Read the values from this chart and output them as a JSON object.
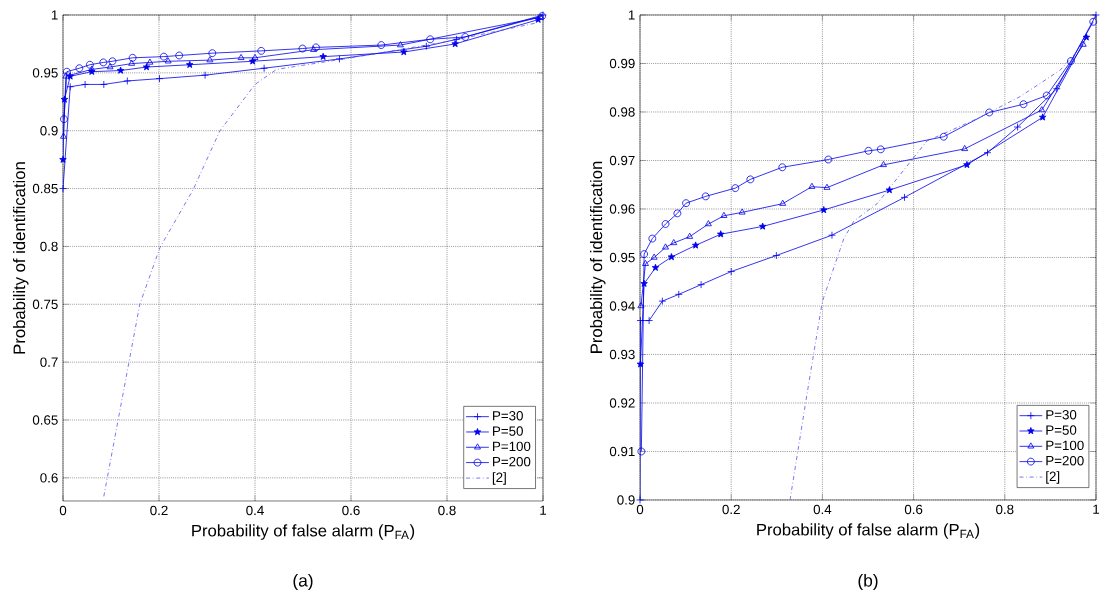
{
  "chart_data": [
    {
      "type": "line",
      "xlabel": "Probability of false alarm  (P$_{FA}$)",
      "ylabel": "Probability of identification",
      "xlim": [
        0,
        1
      ],
      "ylim": [
        0.58,
        1
      ],
      "xticks": [
        0,
        0.2,
        0.4,
        0.6,
        0.8,
        1
      ],
      "yticks": [
        0.6,
        0.65,
        0.7,
        0.75,
        0.8,
        0.85,
        0.9,
        0.95,
        1
      ],
      "grid": true,
      "legend": "bottom right",
      "annotations": [
        "(a)"
      ],
      "series": [
        {
          "name": "P=30",
          "color": "#0000ee",
          "marker": "cross",
          "line_style": "solid",
          "x": [
            0,
            0.015,
            0.046,
            0.085,
            0.134,
            0.201,
            0.296,
            0.419,
            0.576,
            0.757,
            0.82,
            1
          ],
          "values": [
            0.85,
            0.938,
            0.94,
            0.94,
            0.943,
            0.945,
            0.948,
            0.954,
            0.962,
            0.973,
            0.979,
            1
          ]
        },
        {
          "name": "P=50",
          "color": "#0000ee",
          "marker": "star",
          "line_style": "solid",
          "x": [
            0,
            0.003,
            0.015,
            0.06,
            0.12,
            0.174,
            0.264,
            0.395,
            0.542,
            0.71,
            0.817,
            0.99
          ],
          "values": [
            0.875,
            0.927,
            0.947,
            0.951,
            0.952,
            0.955,
            0.957,
            0.96,
            0.964,
            0.968,
            0.975,
            0.996
          ]
        },
        {
          "name": "P=100",
          "color": "#0000ee",
          "marker": "triangle",
          "line_style": "solid",
          "x": [
            0.001,
            0.006,
            0.06,
            0.098,
            0.143,
            0.181,
            0.219,
            0.306,
            0.371,
            0.4,
            0.522,
            0.703,
            0.995
          ],
          "values": [
            0.895,
            0.947,
            0.953,
            0.955,
            0.958,
            0.959,
            0.96,
            0.961,
            0.963,
            0.963,
            0.97,
            0.974,
            0.998
          ]
        },
        {
          "name": "P=200",
          "color": "#0000ee",
          "marker": "circle",
          "line_style": "solid",
          "x": [
            0.002,
            0.008,
            0.034,
            0.056,
            0.084,
            0.103,
            0.145,
            0.21,
            0.242,
            0.311,
            0.413,
            0.499,
            0.527,
            0.663,
            0.765,
            0.838,
            0.998
          ],
          "values": [
            0.91,
            0.951,
            0.954,
            0.957,
            0.959,
            0.96,
            0.963,
            0.964,
            0.965,
            0.967,
            0.969,
            0.971,
            0.972,
            0.974,
            0.979,
            0.981,
            0.999
          ]
        },
        {
          "name": "[2]",
          "color": "#5555ee",
          "marker": "none",
          "line_style": "dashdot",
          "x": [
            0.085,
            0.137,
            0.16,
            0.202,
            0.271,
            0.327,
            0.4,
            0.445,
            0.6,
            0.8,
            0.985
          ],
          "values": [
            0.584,
            0.699,
            0.75,
            0.799,
            0.849,
            0.9,
            0.94,
            0.953,
            0.963,
            0.977,
            0.993
          ]
        }
      ]
    },
    {
      "type": "line",
      "xlabel": "Probability of false alarm  (P$_{FA}$)",
      "ylabel": "Probability of identification",
      "xlim": [
        0,
        1
      ],
      "ylim": [
        0.9,
        1
      ],
      "xticks": [
        0,
        0.2,
        0.4,
        0.6,
        0.8,
        1
      ],
      "yticks": [
        0.9,
        0.91,
        0.92,
        0.93,
        0.94,
        0.95,
        0.96,
        0.97,
        0.98,
        0.99,
        1
      ],
      "grid": true,
      "legend": "bottom right",
      "annotations": [
        "(b)"
      ],
      "series": [
        {
          "name": "P=30",
          "color": "#0000ee",
          "marker": "cross",
          "line_style": "solid",
          "x": [
            0,
            0.001,
            0.02,
            0.049,
            0.085,
            0.134,
            0.2,
            0.299,
            0.421,
            0.58,
            0.762,
            0.828,
            0.914,
            1
          ],
          "values": [
            0.9,
            0.937,
            0.937,
            0.941,
            0.9424,
            0.9444,
            0.9471,
            0.9504,
            0.9546,
            0.9624,
            0.9716,
            0.9769,
            0.9848,
            1
          ]
        },
        {
          "name": "P=50",
          "color": "#0000ee",
          "marker": "star",
          "line_style": "solid",
          "x": [
            0.001,
            0.009,
            0.034,
            0.069,
            0.122,
            0.177,
            0.269,
            0.403,
            0.547,
            0.717,
            0.883,
            0.979
          ],
          "values": [
            0.928,
            0.9446,
            0.9479,
            0.9501,
            0.9525,
            0.9548,
            0.9564,
            0.9598,
            0.9639,
            0.9691,
            0.9789,
            0.9954
          ]
        },
        {
          "name": "P=100",
          "color": "#0000ee",
          "marker": "triangle",
          "line_style": "solid",
          "x": [
            0.002,
            0.012,
            0.031,
            0.056,
            0.074,
            0.109,
            0.15,
            0.184,
            0.224,
            0.313,
            0.377,
            0.41,
            0.534,
            0.712,
            0.881,
            0.972
          ],
          "values": [
            0.94,
            0.9487,
            0.95,
            0.9521,
            0.953,
            0.9543,
            0.9569,
            0.9586,
            0.9593,
            0.9611,
            0.9646,
            0.9644,
            0.9691,
            0.9724,
            0.9804,
            0.9939
          ]
        },
        {
          "name": "P=200",
          "color": "#0000ee",
          "marker": "circle",
          "line_style": "solid",
          "x": [
            0.003,
            0.009,
            0.027,
            0.056,
            0.082,
            0.101,
            0.144,
            0.209,
            0.242,
            0.312,
            0.413,
            0.501,
            0.528,
            0.666,
            0.766,
            0.841,
            0.892,
            0.945,
            0.994
          ],
          "values": [
            0.91,
            0.9507,
            0.9539,
            0.9569,
            0.9591,
            0.9612,
            0.9626,
            0.9643,
            0.9661,
            0.9686,
            0.9702,
            0.972,
            0.9723,
            0.9749,
            0.9799,
            0.9816,
            0.9834,
            0.9905,
            0.9986
          ]
        },
        {
          "name": "[2]",
          "color": "#5555ee",
          "marker": "none",
          "line_style": "dashdot",
          "x": [
            0.329,
            0.366,
            0.398,
            0.403,
            0.447,
            0.469,
            0.52,
            0.629,
            0.739,
            0.834,
            0.921,
            0.979
          ],
          "values": [
            0.9,
            0.9217,
            0.9399,
            0.9418,
            0.9539,
            0.9575,
            0.9611,
            0.974,
            0.9786,
            0.9832,
            0.9886,
            0.9946
          ]
        }
      ]
    }
  ]
}
